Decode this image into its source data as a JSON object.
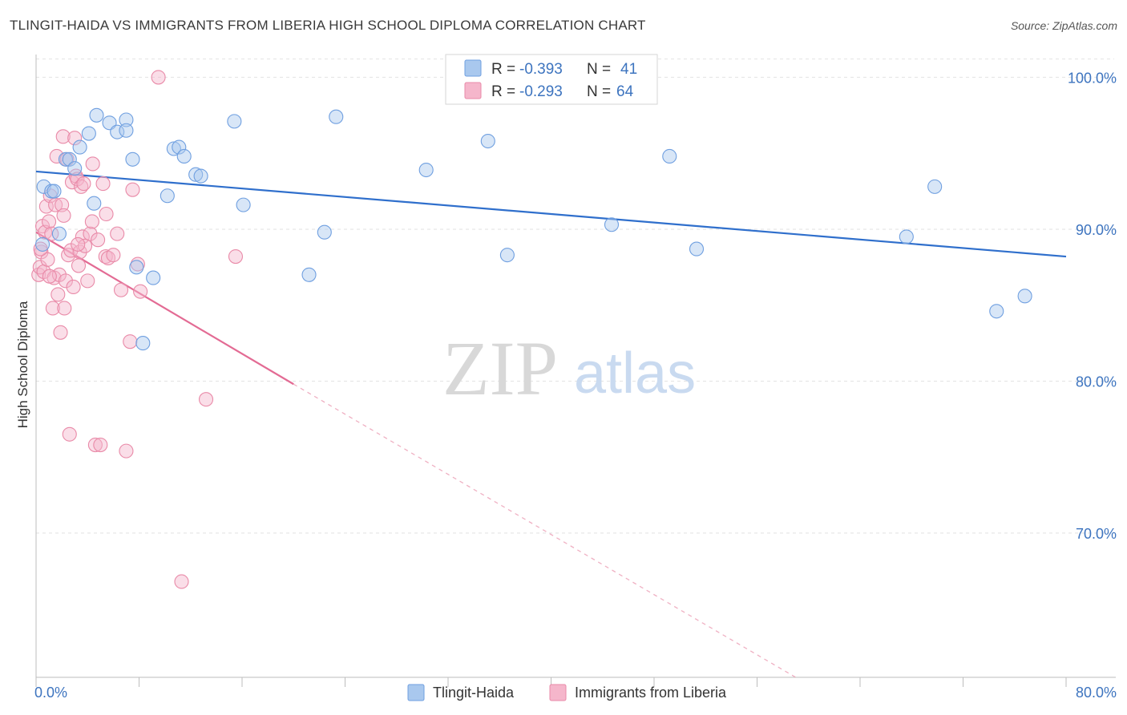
{
  "header": {
    "title": "TLINGIT-HAIDA VS IMMIGRANTS FROM LIBERIA HIGH SCHOOL DIPLOMA CORRELATION CHART",
    "source": "Source: ZipAtlas.com"
  },
  "watermark": {
    "zip": "ZIP",
    "atlas": "atlas"
  },
  "legend": {
    "rows": [
      {
        "r_label": "R =",
        "r_value": "-0.393",
        "n_label": "N =",
        "n_value": "41",
        "color": "#a9c8ee"
      },
      {
        "r_label": "R =",
        "r_value": "-0.293",
        "n_label": "N =",
        "n_value": "64",
        "color": "#f5b6cb"
      }
    ]
  },
  "bottom_legend": {
    "items": [
      {
        "label": "Tlingit-Haida",
        "color": "#a9c8ee"
      },
      {
        "label": "Immigrants from Liberia",
        "color": "#f5b6cb"
      }
    ]
  },
  "chart_data": {
    "type": "scatter",
    "title": "TLINGIT-HAIDA VS IMMIGRANTS FROM LIBERIA HIGH SCHOOL DIPLOMA CORRELATION CHART",
    "xlabel": "",
    "ylabel": "High School Diploma",
    "xlim": [
      0,
      80
    ],
    "ylim": [
      60.5,
      101.5
    ],
    "x_tick_labels": [
      "0.0%",
      "80.0%"
    ],
    "y_ticks": [
      70,
      80,
      90,
      100
    ],
    "y_tick_labels": [
      "70.0%",
      "80.0%",
      "90.0%",
      "100.0%"
    ],
    "grid": true,
    "legend_position": "top-center",
    "series": [
      {
        "name": "Tlingit-Haida",
        "color": "#6f9fe0",
        "fill": "#a9c8ee",
        "trend": {
          "x": [
            0,
            80
          ],
          "y": [
            93.8,
            88.2
          ]
        },
        "points": [
          [
            0.5,
            89.0
          ],
          [
            0.6,
            92.8
          ],
          [
            1.2,
            92.5
          ],
          [
            1.4,
            92.5
          ],
          [
            1.8,
            89.7
          ],
          [
            2.3,
            94.6
          ],
          [
            2.6,
            94.6
          ],
          [
            3.0,
            94.0
          ],
          [
            3.4,
            95.4
          ],
          [
            4.1,
            96.3
          ],
          [
            4.5,
            91.7
          ],
          [
            4.7,
            97.5
          ],
          [
            5.7,
            97.0
          ],
          [
            6.3,
            96.4
          ],
          [
            7.0,
            97.2
          ],
          [
            7.0,
            96.5
          ],
          [
            7.5,
            94.6
          ],
          [
            7.8,
            87.5
          ],
          [
            8.3,
            82.5
          ],
          [
            9.1,
            86.8
          ],
          [
            10.2,
            92.2
          ],
          [
            10.7,
            95.3
          ],
          [
            11.1,
            95.4
          ],
          [
            11.5,
            94.8
          ],
          [
            12.4,
            93.6
          ],
          [
            12.8,
            93.5
          ],
          [
            15.4,
            97.1
          ],
          [
            16.1,
            91.6
          ],
          [
            21.2,
            87.0
          ],
          [
            22.4,
            89.8
          ],
          [
            23.3,
            97.4
          ],
          [
            30.3,
            93.9
          ],
          [
            35.1,
            95.8
          ],
          [
            36.6,
            88.3
          ],
          [
            44.7,
            90.3
          ],
          [
            49.2,
            94.8
          ],
          [
            51.3,
            88.7
          ],
          [
            67.6,
            89.5
          ],
          [
            69.8,
            92.8
          ],
          [
            74.6,
            84.6
          ],
          [
            76.8,
            85.6
          ]
        ]
      },
      {
        "name": "Immigrants from Liberia",
        "color": "#e98aa8",
        "fill": "#f5b6cb",
        "trend": {
          "x": [
            0,
            20
          ],
          "y": [
            89.8,
            79.8
          ]
        },
        "trend_dashed": {
          "x": [
            20,
            59
          ],
          "y": [
            79.8,
            60.5
          ]
        },
        "points": [
          [
            0.2,
            87.0
          ],
          [
            0.3,
            87.5
          ],
          [
            0.4,
            88.5
          ],
          [
            0.5,
            90.2
          ],
          [
            0.6,
            87.2
          ],
          [
            0.7,
            89.8
          ],
          [
            0.8,
            91.5
          ],
          [
            0.9,
            88.0
          ],
          [
            1.0,
            90.5
          ],
          [
            1.1,
            92.2
          ],
          [
            1.2,
            89.7
          ],
          [
            1.3,
            84.8
          ],
          [
            1.4,
            86.8
          ],
          [
            1.5,
            91.6
          ],
          [
            1.6,
            94.8
          ],
          [
            1.7,
            85.7
          ],
          [
            1.8,
            87.0
          ],
          [
            1.9,
            83.2
          ],
          [
            2.0,
            91.6
          ],
          [
            2.1,
            96.1
          ],
          [
            2.2,
            84.8
          ],
          [
            2.3,
            86.6
          ],
          [
            2.4,
            94.6
          ],
          [
            2.5,
            88.3
          ],
          [
            2.6,
            76.5
          ],
          [
            2.7,
            88.6
          ],
          [
            2.8,
            93.1
          ],
          [
            2.9,
            86.2
          ],
          [
            3.0,
            96.0
          ],
          [
            3.1,
            93.5
          ],
          [
            3.2,
            93.3
          ],
          [
            3.3,
            87.6
          ],
          [
            3.4,
            88.5
          ],
          [
            3.5,
            92.8
          ],
          [
            3.6,
            89.5
          ],
          [
            3.7,
            93.0
          ],
          [
            3.8,
            88.9
          ],
          [
            4.0,
            86.6
          ],
          [
            4.2,
            89.7
          ],
          [
            4.4,
            94.3
          ],
          [
            4.6,
            75.8
          ],
          [
            4.8,
            89.3
          ],
          [
            5.0,
            75.8
          ],
          [
            5.2,
            93.0
          ],
          [
            5.4,
            88.2
          ],
          [
            5.6,
            88.1
          ],
          [
            6.0,
            88.3
          ],
          [
            6.3,
            89.7
          ],
          [
            6.6,
            86.0
          ],
          [
            7.0,
            75.4
          ],
          [
            7.3,
            82.6
          ],
          [
            7.5,
            92.6
          ],
          [
            7.9,
            87.7
          ],
          [
            8.1,
            85.9
          ],
          [
            9.5,
            100.0
          ],
          [
            11.3,
            66.8
          ],
          [
            13.2,
            78.8
          ],
          [
            15.5,
            88.2
          ],
          [
            0.35,
            88.7
          ],
          [
            1.05,
            86.9
          ],
          [
            2.15,
            90.9
          ],
          [
            3.25,
            89.0
          ],
          [
            4.35,
            90.5
          ],
          [
            5.45,
            91.0
          ]
        ]
      }
    ]
  }
}
